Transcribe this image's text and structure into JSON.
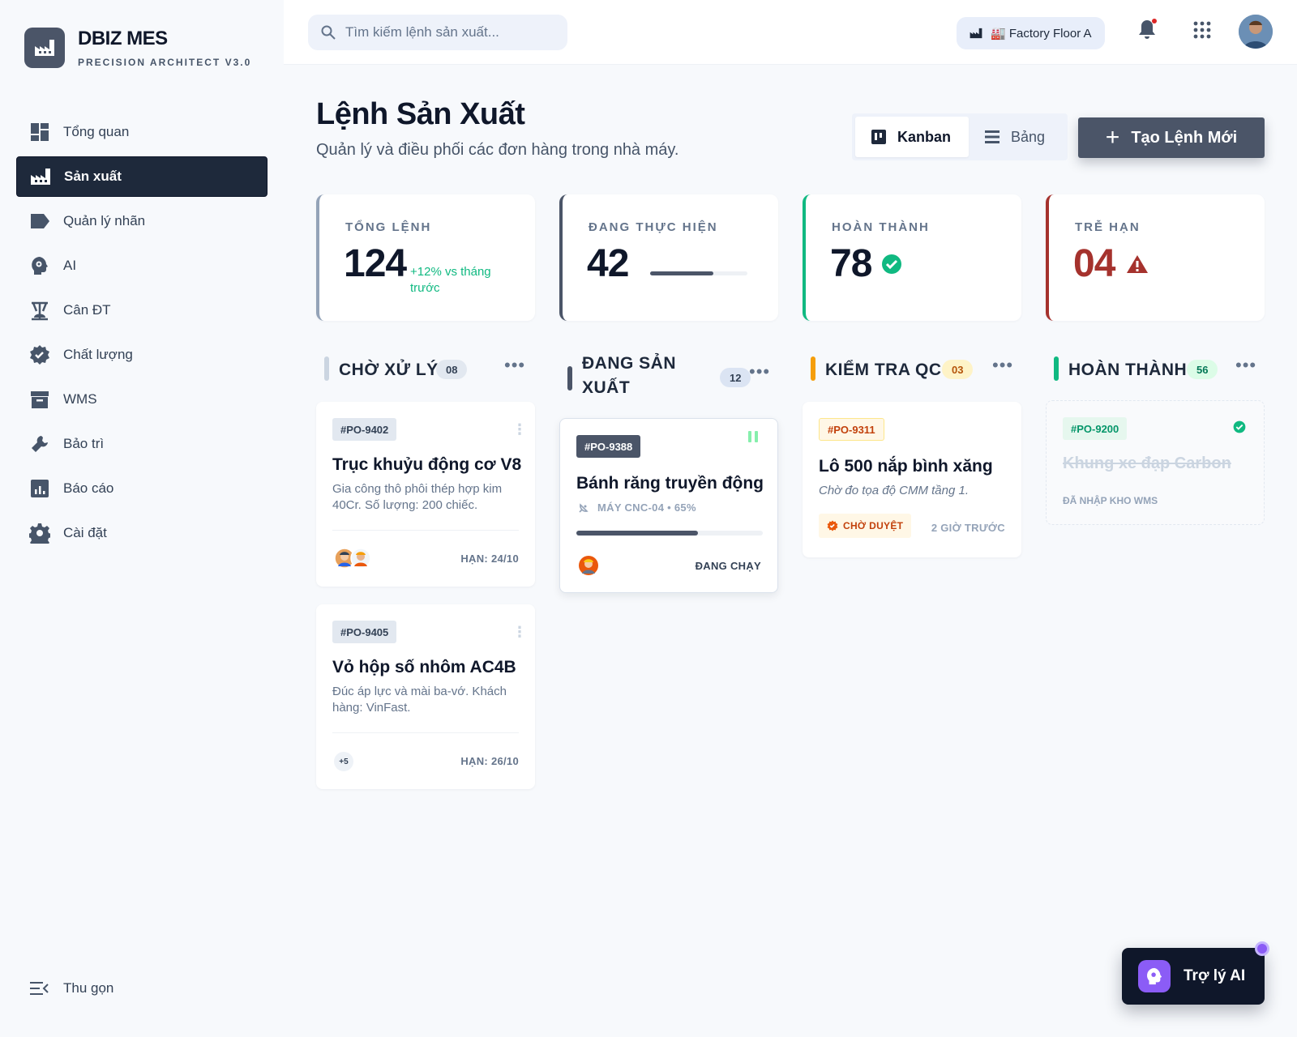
{
  "brand": {
    "name": "DBIZ MES",
    "subtitle": "PRECISION ARCHITECT V3.0"
  },
  "nav": {
    "items": [
      {
        "label": "Tổng quan",
        "icon": "dashboard-icon"
      },
      {
        "label": "Sản xuất",
        "icon": "factory-icon",
        "active": true
      },
      {
        "label": "Quản lý nhãn",
        "icon": "label-icon"
      },
      {
        "label": "AI",
        "icon": "ai-head-icon"
      },
      {
        "label": "Cân ĐT",
        "icon": "scale-icon"
      },
      {
        "label": "Chất lượng",
        "icon": "verified-badge-icon"
      },
      {
        "label": "WMS",
        "icon": "archive-icon"
      },
      {
        "label": "Bảo trì",
        "icon": "wrench-icon"
      },
      {
        "label": "Báo cáo",
        "icon": "report-chart-icon"
      },
      {
        "label": "Cài đặt",
        "icon": "gear-icon"
      }
    ],
    "collapse_label": "Thu gọn"
  },
  "topbar": {
    "search_placeholder": "Tìm kiếm lệnh sản xuất...",
    "factory_label": "🏭 Factory Floor A"
  },
  "header": {
    "title": "Lệnh Sản Xuất",
    "subtitle": "Quản lý và điều phối các đơn hàng trong nhà máy.",
    "view_kanban": "Kanban",
    "view_table": "Bảng",
    "create_label": "Tạo Lệnh Mới"
  },
  "stats": [
    {
      "label": "TỔNG LỆNH",
      "value": "124",
      "trend": "+12% vs tháng trước"
    },
    {
      "label": "ĐANG THỰC HIỆN",
      "value": "42",
      "progress": 0.65
    },
    {
      "label": "HOÀN THÀNH",
      "value": "78"
    },
    {
      "label": "TRỄ HẠN",
      "value": "04"
    }
  ],
  "colors": {
    "accent": "#4b5568",
    "success": "#10b981",
    "warning": "#f59e0b",
    "danger": "#a5322d"
  },
  "columns": [
    {
      "title": "CHỜ XỬ LÝ",
      "count": "08",
      "cards": [
        {
          "id": "#PO-9402",
          "title": "Trục khuỷu động cơ V8",
          "desc": "Gia công thô phôi thép hợp kim 40Cr. Số lượng: 200 chiếc.",
          "due": "HẠN: 24/10"
        },
        {
          "id": "#PO-9405",
          "title": "Vỏ hộp số nhôm AC4B",
          "desc": "Đúc áp lực và mài ba-vớ. Khách hàng: VinFast.",
          "due": "HẠN: 26/10",
          "extra": "+5"
        }
      ]
    },
    {
      "title_line1": "ĐANG SẢN",
      "title_line2": "XUẤT",
      "count": "12",
      "cards": [
        {
          "id": "#PO-9388",
          "title": "Bánh răng truyền động",
          "meta": "MÁY CNC-04 • 65%",
          "progress": 0.65,
          "status": "ĐANG CHẠY"
        }
      ]
    },
    {
      "title": "KIỂM TRA QC",
      "count": "03",
      "cards": [
        {
          "id": "#PO-9311",
          "title": "Lô 500 nắp bình xăng",
          "desc": "Chờ đo tọa độ CMM tầng 1.",
          "badge": "CHỜ DUYỆT",
          "time": "2 GIỜ TRƯỚC"
        }
      ]
    },
    {
      "title": "HOÀN THÀNH",
      "count": "56",
      "cards": [
        {
          "id": "#PO-9200",
          "title": "Khung xe đạp Carbon",
          "note": "ĐÃ NHẬP KHO WMS"
        }
      ]
    }
  ],
  "ai_assistant": {
    "label": "Trợ lý AI"
  }
}
